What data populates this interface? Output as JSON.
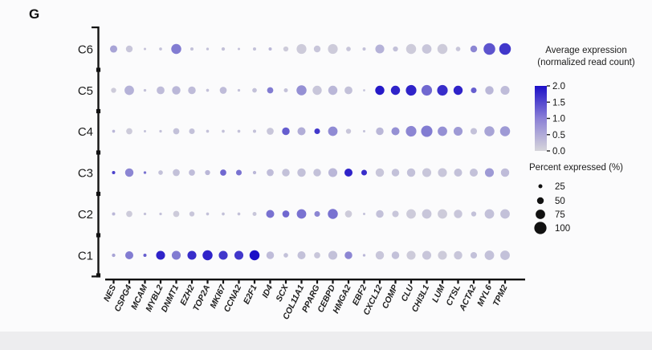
{
  "panel_label": "G",
  "legend": {
    "avg_title_line1": "Average expression",
    "avg_title_line2": "(normalized read count)",
    "color_ticks": [
      "2.0",
      "1.5",
      "1.0",
      "0.5",
      "0.0"
    ],
    "pct_title": "Percent expressed (%)",
    "pct_sizes": [
      "25",
      "50",
      "75",
      "100"
    ],
    "color_high": "#1c0fc7",
    "color_mid": "#8b80d6",
    "color_low": "#d6d5da",
    "size_dot_color": "#111111"
  },
  "chart_data": {
    "type": "scatter",
    "subtype": "gene-expression-dot-plot",
    "title": "",
    "xlabel": "",
    "ylabel": "",
    "x_categories": [
      "NES",
      "CSPG4",
      "MCAM",
      "MYBL2",
      "DNMT1",
      "EZH2",
      "TOP2A",
      "MKI67",
      "CCNA2",
      "E2F1",
      "ID4",
      "SCX",
      "COL11A1",
      "PPARG",
      "CEBPD",
      "HMGA2",
      "EBF2",
      "CXCL12",
      "COMP",
      "CLU",
      "CHI3L1",
      "LUM",
      "CTSL",
      "ACTA2",
      "MYL6",
      "TPM2"
    ],
    "y_categories_top_to_bottom": [
      "C6",
      "C5",
      "C4",
      "C3",
      "C2",
      "C1"
    ],
    "value_scale": {
      "name": "average expression (normalized read count)",
      "min": 0.0,
      "max": 2.0
    },
    "size_scale": {
      "name": "percent expressed (%)",
      "ticks": [
        25,
        50,
        75,
        100
      ]
    },
    "series": [
      {
        "name": "C6",
        "percent": [
          55,
          50,
          10,
          15,
          80,
          18,
          13,
          20,
          10,
          18,
          18,
          35,
          78,
          50,
          78,
          30,
          18,
          70,
          35,
          80,
          75,
          80,
          30,
          50,
          95,
          95
        ],
        "expression": [
          0.5,
          0.15,
          0.2,
          0.2,
          0.9,
          0.2,
          0.2,
          0.2,
          0.2,
          0.2,
          0.3,
          0.1,
          0.1,
          0.15,
          0.1,
          0.15,
          0.2,
          0.35,
          0.2,
          0.1,
          0.15,
          0.1,
          0.15,
          0.8,
          1.3,
          1.6
        ]
      },
      {
        "name": "C5",
        "percent": [
          35,
          75,
          13,
          60,
          65,
          58,
          15,
          52,
          12,
          30,
          45,
          25,
          80,
          72,
          72,
          60,
          8,
          72,
          72,
          85,
          85,
          85,
          72,
          40,
          65,
          70
        ],
        "expression": [
          0.1,
          0.35,
          0.2,
          0.25,
          0.3,
          0.25,
          0.2,
          0.25,
          0.2,
          0.2,
          0.9,
          0.2,
          0.7,
          0.15,
          0.3,
          0.2,
          0.2,
          1.9,
          1.8,
          1.8,
          1.1,
          1.7,
          1.8,
          1.2,
          0.3,
          0.25
        ]
      },
      {
        "name": "C4",
        "percent": [
          15,
          45,
          10,
          12,
          45,
          40,
          15,
          15,
          15,
          18,
          52,
          58,
          62,
          40,
          75,
          35,
          10,
          58,
          62,
          85,
          92,
          75,
          70,
          48,
          80,
          80
        ],
        "expression": [
          0.3,
          0.1,
          0.2,
          0.2,
          0.2,
          0.2,
          0.2,
          0.2,
          0.2,
          0.2,
          0.15,
          1.2,
          0.4,
          1.6,
          0.75,
          0.15,
          0.2,
          0.3,
          0.7,
          0.8,
          0.9,
          0.7,
          0.6,
          0.2,
          0.5,
          0.6
        ]
      },
      {
        "name": "C3",
        "percent": [
          18,
          65,
          13,
          30,
          52,
          45,
          35,
          45,
          40,
          20,
          52,
          58,
          65,
          58,
          70,
          62,
          40,
          65,
          58,
          65,
          70,
          70,
          62,
          62,
          70,
          65
        ],
        "expression": [
          1.5,
          0.8,
          1.0,
          0.2,
          0.2,
          0.25,
          0.3,
          1.1,
          1.0,
          0.3,
          0.25,
          0.2,
          0.2,
          0.2,
          0.3,
          1.8,
          1.7,
          0.15,
          0.2,
          0.2,
          0.15,
          0.15,
          0.2,
          0.2,
          0.6,
          0.25
        ]
      },
      {
        "name": "C2",
        "percent": [
          18,
          45,
          12,
          12,
          45,
          35,
          15,
          15,
          15,
          25,
          62,
          52,
          75,
          40,
          80,
          52,
          10,
          58,
          48,
          75,
          75,
          75,
          65,
          35,
          75,
          75
        ],
        "expression": [
          0.3,
          0.1,
          0.2,
          0.2,
          0.1,
          0.15,
          0.2,
          0.2,
          0.2,
          0.15,
          1.0,
          1.1,
          1.0,
          0.8,
          1.0,
          0.1,
          0.2,
          0.2,
          0.15,
          0.1,
          0.15,
          0.1,
          0.15,
          0.2,
          0.2,
          0.2
        ]
      },
      {
        "name": "C1",
        "percent": [
          20,
          62,
          18,
          70,
          70,
          70,
          80,
          70,
          70,
          80,
          58,
          30,
          62,
          45,
          70,
          58,
          13,
          65,
          58,
          70,
          70,
          70,
          65,
          48,
          75,
          75
        ],
        "expression": [
          0.5,
          0.9,
          1.2,
          1.8,
          0.9,
          1.7,
          1.8,
          1.6,
          1.6,
          2.0,
          0.25,
          0.2,
          0.2,
          0.15,
          0.2,
          0.8,
          0.3,
          0.15,
          0.2,
          0.1,
          0.15,
          0.1,
          0.15,
          0.2,
          0.2,
          0.2
        ]
      }
    ],
    "legend_position": "right",
    "grid": false
  }
}
